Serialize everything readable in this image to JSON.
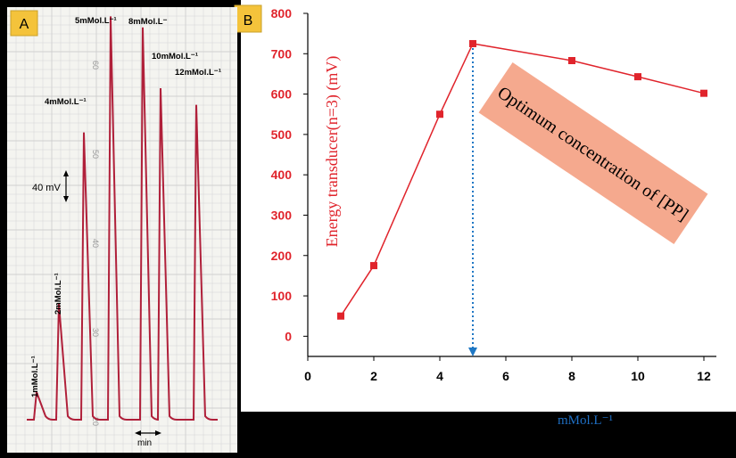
{
  "chart_data": [
    {
      "type": "line",
      "panel_label": "A",
      "peak_labels": [
        "1mMol.L⁻¹",
        "2mMol.L⁻¹",
        "4mMol.L⁻¹",
        "5mMol.L⁻¹",
        "8mMol.L⁻",
        "10mMol.L⁻¹",
        "12mMol.L⁻¹"
      ],
      "peak_heights_mV": [
        50,
        210,
        520,
        730,
        710,
        600,
        570
      ],
      "scale_bar_label": "40 mV",
      "time_bar_label": "min",
      "chart_paper_numbers": [
        "60",
        "50",
        "40",
        "30",
        "20"
      ],
      "colors": {
        "trace": "#b0203a",
        "paper": "#f4f4f0",
        "grid": "#cfcfcf"
      }
    },
    {
      "type": "line",
      "panel_label": "B",
      "x": [
        1,
        2,
        4,
        5,
        8,
        10,
        12
      ],
      "y": [
        50,
        175,
        550,
        725,
        683,
        643,
        602
      ],
      "xlabel": "mMol.L⁻¹",
      "ylabel": "Energy transducer(n=3) (mV)",
      "xlim": [
        0,
        12
      ],
      "ylim": [
        -50,
        800
      ],
      "xticks": [
        0,
        2,
        4,
        6,
        8,
        10,
        12
      ],
      "yticks": [
        0,
        100,
        200,
        300,
        400,
        500,
        600,
        700,
        800
      ],
      "grid": false,
      "optimum_line_x": 5,
      "annotation": "Optimum concentration of [PP]",
      "colors": {
        "series": "#e0242c",
        "axis_text": "#e0242c",
        "optimum_line": "#1f77c4",
        "annotation_box": "#f5a98e",
        "xlabel": "#1f6fc4"
      }
    }
  ]
}
